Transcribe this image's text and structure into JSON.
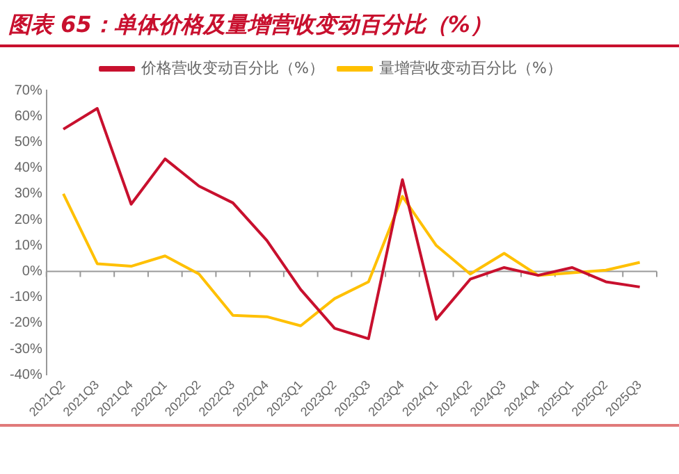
{
  "chart_data": {
    "type": "line",
    "title": "图表 65：单体价格及量增营收变动百分比（%）",
    "categories": [
      "2021Q2",
      "2021Q3",
      "2021Q4",
      "2022Q1",
      "2022Q2",
      "2022Q3",
      "2022Q4",
      "2023Q1",
      "2023Q2",
      "2023Q3",
      "2023Q4",
      "2024Q1",
      "2024Q2",
      "2024Q3",
      "2024Q4",
      "2025Q1",
      "2025Q2",
      "2025Q3"
    ],
    "series": [
      {
        "name": "价格营收变动百分比（%）",
        "color": "#c8102e",
        "values": [
          55,
          63,
          26,
          43.5,
          33,
          26.5,
          12,
          -7,
          -22,
          -26,
          35.5,
          -18.5,
          -3,
          1.5,
          -1.5,
          1.5,
          -4,
          -6
        ]
      },
      {
        "name": "量增营收变动百分比（%）",
        "color": "#ffc000",
        "values": [
          30,
          3,
          2,
          6,
          -1,
          -17,
          -17.5,
          -21,
          -10.5,
          -4,
          29,
          10,
          -1,
          7,
          -1.5,
          -0.5,
          0.5,
          3.5
        ]
      }
    ],
    "ylim": [
      -40,
      70
    ],
    "yticks": [
      {
        "value": -40,
        "label": "-40%"
      },
      {
        "value": -30,
        "label": "-30%"
      },
      {
        "value": -20,
        "label": "-20%"
      },
      {
        "value": -10,
        "label": "-10%"
      },
      {
        "value": 0,
        "label": "0%"
      },
      {
        "value": 10,
        "label": "10%"
      },
      {
        "value": 20,
        "label": "20%"
      },
      {
        "value": 30,
        "label": "30%"
      },
      {
        "value": 40,
        "label": "40%"
      },
      {
        "value": 50,
        "label": "50%"
      },
      {
        "value": 60,
        "label": "60%"
      },
      {
        "value": 70,
        "label": "70%"
      }
    ],
    "ref_lines": [
      {
        "axis": "y",
        "value": 0,
        "color": "#999999"
      }
    ],
    "grid": false,
    "legend": "top",
    "marker": "none",
    "line_style": "solid"
  }
}
